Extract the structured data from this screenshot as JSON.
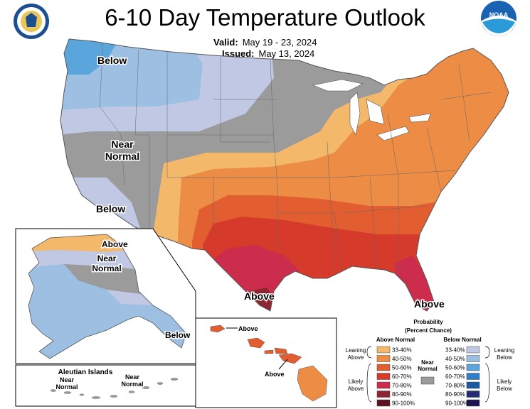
{
  "title": "6-10 Day Temperature Outlook",
  "valid_label": "Valid:",
  "valid_value": "May 19 - 23, 2024",
  "issued_label": "Issued:",
  "issued_value": "May 13, 2024",
  "logos": {
    "left": {
      "icon": "department-of-commerce-seal",
      "text": "DEPARTMENT OF COMMERCE · UNITED STATES OF AMERICA"
    },
    "right": {
      "icon": "noaa-logo",
      "text": "NOAA"
    }
  },
  "map_labels": {
    "below_nw": "Below",
    "near_normal_w": "Near\nNormal",
    "below_sw": "Below",
    "above_tx": "Above",
    "above_fl": "Above",
    "ak_above": "Above",
    "ak_near_normal": "Near\nNormal",
    "ak_below": "Below",
    "hi_above_1": "Above",
    "hi_above_2": "Above",
    "aleutian_title": "Aleutian Islands",
    "aleutian_near_1": "Near\nNormal",
    "aleutian_near_2": "Near\nNormal"
  },
  "legend": {
    "title": "Probability",
    "subtitle": "(Percent Chance)",
    "above_header": "Above Normal",
    "below_header": "Below Normal",
    "near_normal": "Near\nNormal",
    "leaning_above": "Leaning\nAbove",
    "likely_above": "Likely\nAbove",
    "leaning_below": "Leaning\nBelow",
    "likely_below": "Likely\nBelow",
    "above_bins": [
      {
        "label": "33-40%",
        "color": "#f3b86a"
      },
      {
        "label": "40-50%",
        "color": "#ec8c45"
      },
      {
        "label": "50-60%",
        "color": "#e25e31"
      },
      {
        "label": "60-70%",
        "color": "#d53a2a"
      },
      {
        "label": "70-80%",
        "color": "#cc2d4c"
      },
      {
        "label": "80-90%",
        "color": "#8e2532"
      },
      {
        "label": "90-100%",
        "color": "#5c1222"
      }
    ],
    "below_bins": [
      {
        "label": "33-40%",
        "color": "#c0c8e4"
      },
      {
        "label": "40-50%",
        "color": "#9dbfe2"
      },
      {
        "label": "50-60%",
        "color": "#5aa5dc"
      },
      {
        "label": "60-70%",
        "color": "#2f7fc6"
      },
      {
        "label": "70-80%",
        "color": "#1a5aa2"
      },
      {
        "label": "80-90%",
        "color": "#262a78"
      },
      {
        "label": "90-100%",
        "color": "#1a1650"
      }
    ],
    "near_color": "#9b9b9b"
  }
}
